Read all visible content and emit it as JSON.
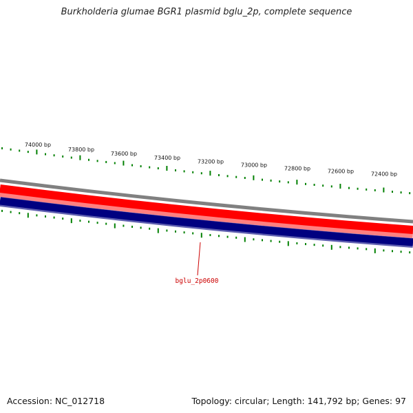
{
  "header": {
    "title": "Burkholderia glumae BGR1 plasmid bglu_2p, complete sequence"
  },
  "footer": {
    "accession": "Accession: NC_012718",
    "summary": "Topology: circular; Length: 141,792 bp; Genes: 97"
  },
  "map": {
    "tick_labels": [
      "74000 bp",
      "73800 bp",
      "73600 bp",
      "73400 bp",
      "73200 bp",
      "73000 bp",
      "72800 bp",
      "72600 bp",
      "72400 bp"
    ],
    "gene_label": "bglu_2p0600",
    "colors": {
      "backbone": "#808080",
      "forward_strand": "#ff0000",
      "forward_strand_light": "#ff8080",
      "reverse_strand": "#000080",
      "reverse_strand_edge": "#6060b0",
      "ticks": "#008000",
      "gene_label": "#cc0000"
    }
  }
}
